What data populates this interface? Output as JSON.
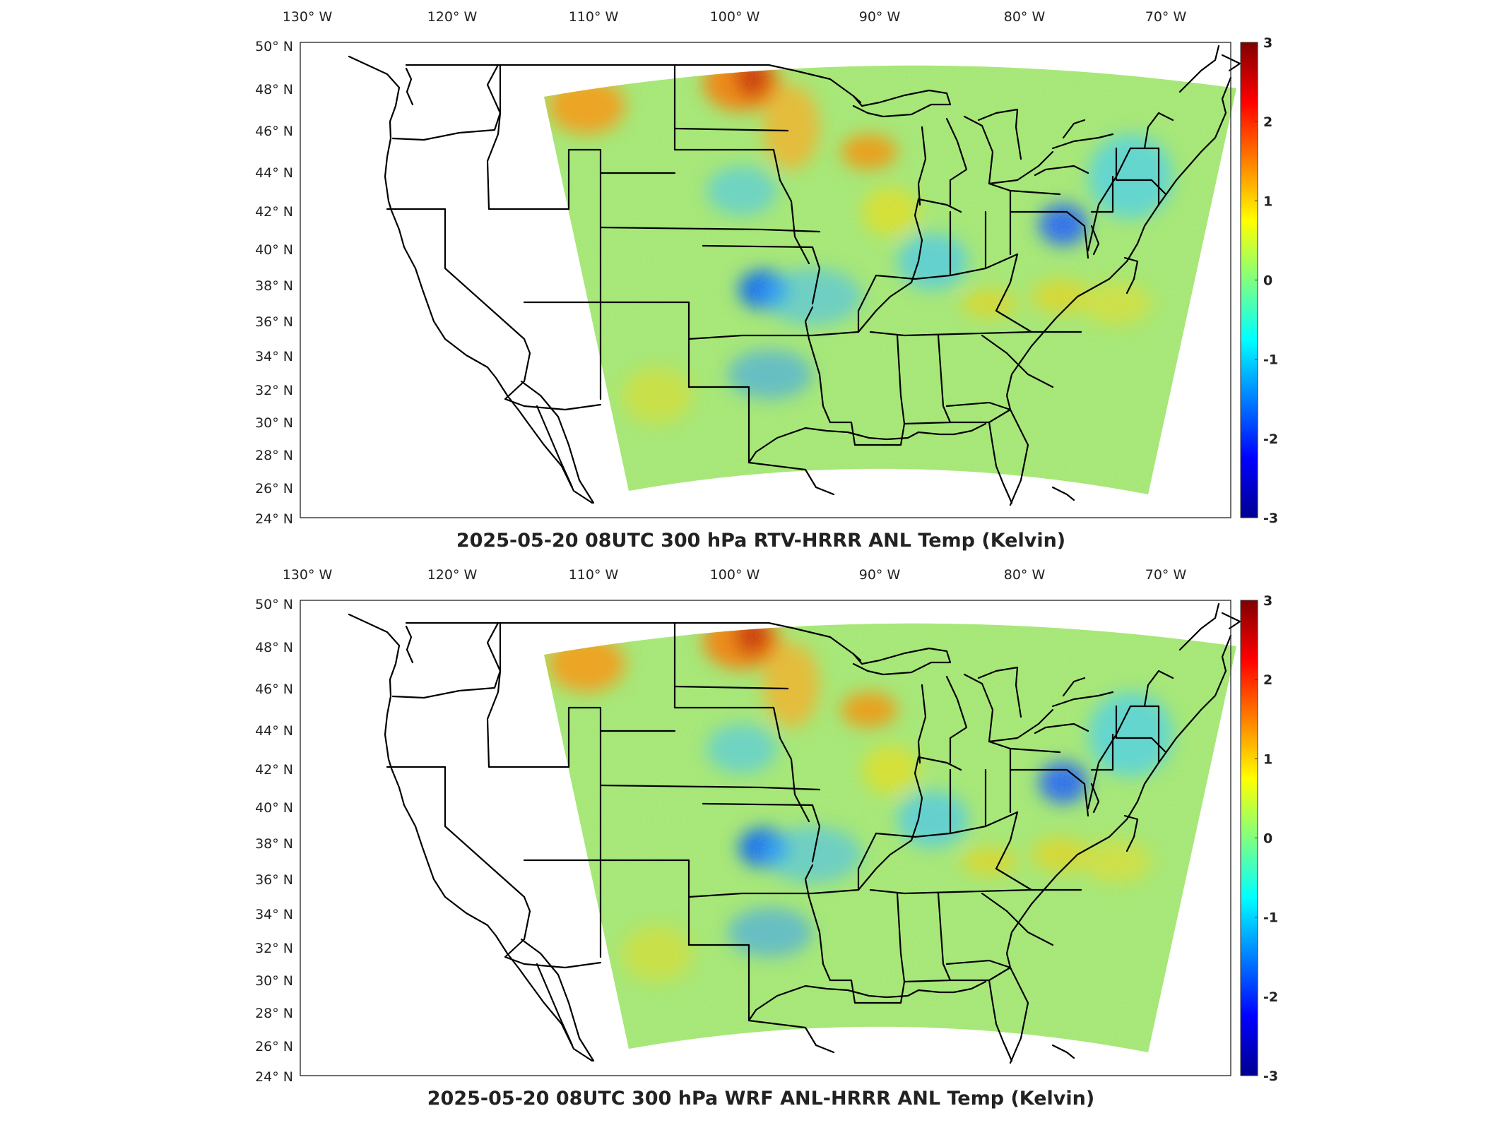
{
  "colorbar": {
    "ticks": [
      "3",
      "2",
      "1",
      "0",
      "-1",
      "-2",
      "-3"
    ],
    "range": [
      -3,
      3
    ],
    "colors": [
      "#00008f",
      "#0000ff",
      "#0080ff",
      "#00ffff",
      "#80ff80",
      "#ffff00",
      "#ff8000",
      "#ff0000",
      "#800000"
    ]
  },
  "lon_labels": [
    "130",
    "120",
    "110",
    "100",
    "90",
    "80",
    "70"
  ],
  "lon_suffix": "W",
  "lat_labels": [
    "50",
    "48",
    "46",
    "44",
    "42",
    "40",
    "38",
    "36",
    "34",
    "32",
    "30",
    "28",
    "26",
    "24"
  ],
  "lat_suffix": "N",
  "panels": [
    {
      "title": "2025-05-20 08UTC 300 hPa RTV-HRRR ANL Temp (Kelvin)"
    },
    {
      "title": "2025-05-20 08UTC 300 hPa WRF ANL-HRRR ANL Temp (Kelvin)"
    }
  ]
}
